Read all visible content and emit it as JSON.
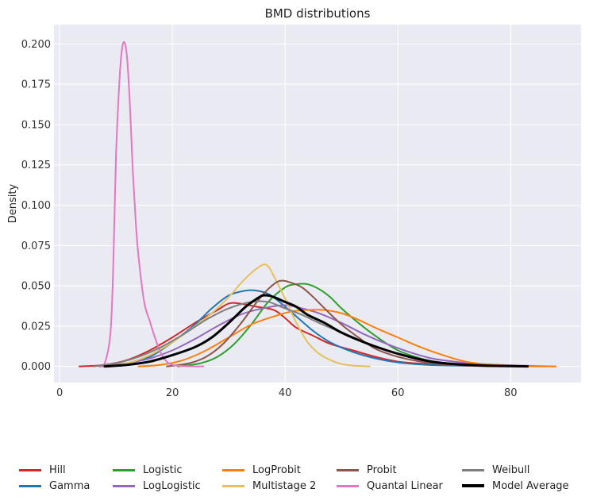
{
  "chart_data": {
    "type": "line",
    "title": "BMD distributions",
    "xlabel": "",
    "ylabel": "Density",
    "xlim": [
      -1,
      92.5
    ],
    "ylim": [
      -0.01,
      0.212
    ],
    "xticks": [
      0,
      20,
      40,
      60,
      80
    ],
    "xtick_labels": [
      "0",
      "20",
      "40",
      "60",
      "80"
    ],
    "yticks": [
      0.0,
      0.025,
      0.05,
      0.075,
      0.1,
      0.125,
      0.15,
      0.175,
      0.2
    ],
    "ytick_labels": [
      "0.000",
      "0.025",
      "0.050",
      "0.075",
      "0.100",
      "0.125",
      "0.150",
      "0.175",
      "0.200"
    ],
    "grid": true,
    "background": "#eaeaf2",
    "legend_position": "bottom, 6 columns",
    "series": [
      {
        "name": "Hill",
        "color": "#d62728",
        "width": 2,
        "x": [
          3.5,
          8,
          12,
          16,
          20,
          24,
          28,
          30,
          32,
          35,
          38,
          40,
          42,
          45,
          48,
          52,
          56,
          60,
          65,
          70,
          75,
          80,
          83
        ],
        "y": [
          0.0,
          0.001,
          0.004,
          0.01,
          0.018,
          0.027,
          0.035,
          0.039,
          0.039,
          0.037,
          0.035,
          0.03,
          0.024,
          0.019,
          0.014,
          0.01,
          0.006,
          0.003,
          0.0015,
          0.0007,
          0.0003,
          0.0001,
          0.0
        ]
      },
      {
        "name": "Gamma",
        "color": "#1f77b4",
        "width": 2,
        "x": [
          7,
          12,
          16,
          20,
          24,
          27,
          30,
          33,
          35,
          37,
          39,
          42,
          45,
          48,
          52,
          56,
          60,
          65,
          70,
          75,
          80,
          83
        ],
        "y": [
          0.0,
          0.002,
          0.006,
          0.015,
          0.026,
          0.036,
          0.044,
          0.047,
          0.047,
          0.045,
          0.04,
          0.031,
          0.022,
          0.015,
          0.009,
          0.005,
          0.0025,
          0.001,
          0.0005,
          0.0002,
          0.0001,
          0.0
        ]
      },
      {
        "name": "Logistic",
        "color": "#2ca02c",
        "width": 2,
        "x": [
          21,
          25,
          28,
          31,
          34,
          37,
          40,
          42,
          44,
          46,
          48,
          50,
          53,
          56,
          60,
          64,
          68,
          72,
          76,
          80,
          83
        ],
        "y": [
          0.0,
          0.002,
          0.006,
          0.014,
          0.026,
          0.04,
          0.049,
          0.051,
          0.051,
          0.048,
          0.043,
          0.036,
          0.027,
          0.019,
          0.01,
          0.005,
          0.002,
          0.001,
          0.0004,
          0.0001,
          0.0
        ]
      },
      {
        "name": "LogLogistic",
        "color": "#9467bd",
        "width": 2,
        "x": [
          7,
          12,
          16,
          20,
          24,
          28,
          32,
          36,
          40,
          43,
          46,
          50,
          54,
          58,
          62,
          66,
          70,
          75,
          80,
          85,
          88
        ],
        "y": [
          0.0,
          0.002,
          0.005,
          0.01,
          0.017,
          0.025,
          0.032,
          0.036,
          0.038,
          0.036,
          0.033,
          0.027,
          0.02,
          0.014,
          0.009,
          0.005,
          0.003,
          0.0015,
          0.0007,
          0.0002,
          0.0
        ]
      },
      {
        "name": "LogProbit",
        "color": "#ff7f0e",
        "width": 2,
        "x": [
          14,
          18,
          22,
          26,
          30,
          34,
          38,
          41,
          44,
          47,
          50,
          53,
          56,
          60,
          64,
          68,
          72,
          76,
          80,
          84,
          88
        ],
        "y": [
          0.0,
          0.001,
          0.004,
          0.01,
          0.018,
          0.026,
          0.031,
          0.034,
          0.035,
          0.035,
          0.033,
          0.029,
          0.024,
          0.018,
          0.012,
          0.007,
          0.003,
          0.0012,
          0.0004,
          0.0001,
          0.0
        ]
      },
      {
        "name": "Multistage 2",
        "color": "#e6c05c",
        "width": 2,
        "x": [
          8,
          12,
          16,
          20,
          24,
          27,
          30,
          32,
          34,
          36,
          37,
          38,
          40,
          42,
          44,
          46,
          48,
          50,
          52,
          55
        ],
        "y": [
          0.0,
          0.002,
          0.007,
          0.015,
          0.025,
          0.033,
          0.043,
          0.051,
          0.058,
          0.063,
          0.062,
          0.056,
          0.042,
          0.027,
          0.015,
          0.008,
          0.004,
          0.0015,
          0.0005,
          0.0
        ]
      },
      {
        "name": "Probit",
        "color": "#8c564b",
        "width": 2,
        "x": [
          19,
          23,
          26,
          29,
          32,
          35,
          37,
          39,
          41,
          43,
          45,
          47,
          50,
          53,
          56,
          60,
          64,
          68,
          72,
          76,
          80,
          83
        ],
        "y": [
          0.0,
          0.002,
          0.006,
          0.014,
          0.026,
          0.04,
          0.048,
          0.053,
          0.052,
          0.049,
          0.043,
          0.036,
          0.026,
          0.018,
          0.011,
          0.006,
          0.003,
          0.0013,
          0.0005,
          0.0002,
          0.0001,
          0.0
        ]
      },
      {
        "name": "Quantal Linear",
        "color": "#e377c2",
        "width": 2,
        "x": [
          7,
          8,
          9,
          9.5,
          10,
          10.5,
          11,
          11.5,
          12,
          12.5,
          13,
          13.5,
          14,
          15,
          16,
          17,
          18,
          19,
          20,
          22,
          25.5
        ],
        "y": [
          0.0,
          0.002,
          0.02,
          0.06,
          0.13,
          0.17,
          0.195,
          0.201,
          0.19,
          0.16,
          0.12,
          0.09,
          0.068,
          0.04,
          0.028,
          0.017,
          0.008,
          0.003,
          0.001,
          0.0002,
          0.0
        ]
      },
      {
        "name": "Weibull",
        "color": "#7f7f7f",
        "width": 2,
        "x": [
          6,
          10,
          14,
          18,
          22,
          26,
          30,
          34,
          37,
          40,
          43,
          46,
          50,
          54,
          58,
          62,
          66,
          70,
          75,
          80,
          83
        ],
        "y": [
          0.0,
          0.002,
          0.006,
          0.012,
          0.02,
          0.029,
          0.036,
          0.04,
          0.04,
          0.036,
          0.032,
          0.027,
          0.021,
          0.015,
          0.01,
          0.006,
          0.003,
          0.0015,
          0.0006,
          0.0002,
          0.0
        ]
      },
      {
        "name": "Model Average",
        "color": "#000000",
        "width": 3,
        "x": [
          8,
          12,
          16,
          20,
          24,
          27,
          30,
          33,
          35,
          36,
          37,
          38,
          40,
          42,
          44,
          47,
          50,
          54,
          58,
          62,
          66,
          70,
          75,
          80,
          83
        ],
        "y": [
          0.0,
          0.001,
          0.003,
          0.007,
          0.012,
          0.018,
          0.027,
          0.037,
          0.042,
          0.044,
          0.044,
          0.043,
          0.04,
          0.037,
          0.032,
          0.027,
          0.021,
          0.015,
          0.01,
          0.006,
          0.003,
          0.0015,
          0.0006,
          0.0002,
          0.0
        ]
      }
    ]
  },
  "legend_columns": [
    [
      "Hill",
      "Gamma"
    ],
    [
      "Logistic",
      "LogLogistic"
    ],
    [
      "LogProbit",
      "Multistage 2"
    ],
    [
      "Probit",
      "Quantal Linear"
    ],
    [
      "Weibull",
      "Model Average"
    ]
  ]
}
